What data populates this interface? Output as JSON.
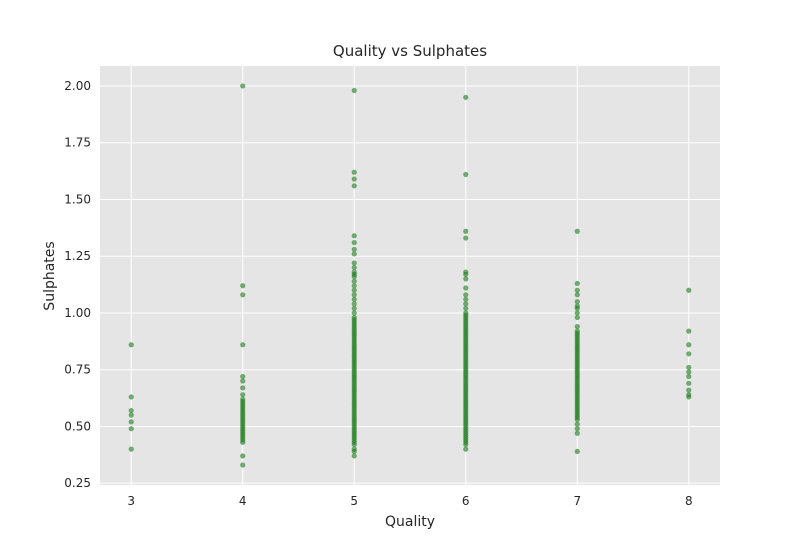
{
  "chart_data": {
    "type": "scatter",
    "title": "Quality vs Sulphates",
    "xlabel": "Quality",
    "ylabel": "Sulphates",
    "xlim": [
      2.72,
      8.28
    ],
    "ylim": [
      0.242,
      2.088
    ],
    "xticks": [
      3,
      4,
      5,
      6,
      7,
      8
    ],
    "xtick_labels": [
      "3",
      "4",
      "5",
      "6",
      "7",
      "8"
    ],
    "yticks": [
      0.25,
      0.5,
      0.75,
      1.0,
      1.25,
      1.5,
      1.75,
      2.0
    ],
    "ytick_labels": [
      "0.25",
      "0.50",
      "0.75",
      "1.00",
      "1.25",
      "1.50",
      "1.75",
      "2.00"
    ],
    "grid": true,
    "colors": {
      "background": "#e5e5e5",
      "grid": "#ffffff",
      "point": "#1a7a1a"
    },
    "series": [
      {
        "points": [
          [
            3,
            0.86
          ],
          [
            3,
            0.63
          ],
          [
            3,
            0.57
          ],
          [
            3,
            0.55
          ],
          [
            3,
            0.52
          ],
          [
            3,
            0.49
          ],
          [
            3,
            0.4
          ],
          [
            4,
            2.0
          ],
          [
            4,
            1.12
          ],
          [
            4,
            1.08
          ],
          [
            4,
            0.86
          ],
          [
            4,
            0.72
          ],
          [
            4,
            0.7
          ],
          [
            4,
            0.67
          ],
          [
            4,
            0.64
          ],
          [
            4,
            0.62
          ],
          [
            4,
            0.61
          ],
          [
            4,
            0.6
          ],
          [
            4,
            0.59
          ],
          [
            4,
            0.58
          ],
          [
            4,
            0.57
          ],
          [
            4,
            0.56
          ],
          [
            4,
            0.55
          ],
          [
            4,
            0.54
          ],
          [
            4,
            0.53
          ],
          [
            4,
            0.52
          ],
          [
            4,
            0.51
          ],
          [
            4,
            0.5
          ],
          [
            4,
            0.49
          ],
          [
            4,
            0.48
          ],
          [
            4,
            0.47
          ],
          [
            4,
            0.46
          ],
          [
            4,
            0.45
          ],
          [
            4,
            0.44
          ],
          [
            4,
            0.43
          ],
          [
            4,
            0.37
          ],
          [
            4,
            0.33
          ],
          [
            5,
            1.98
          ],
          [
            5,
            1.62
          ],
          [
            5,
            1.59
          ],
          [
            5,
            1.56
          ],
          [
            5,
            1.34
          ],
          [
            5,
            1.31
          ],
          [
            5,
            1.28
          ],
          [
            5,
            1.26
          ],
          [
            5,
            1.22
          ],
          [
            5,
            1.2
          ],
          [
            5,
            1.18
          ],
          [
            5,
            1.17
          ],
          [
            5,
            1.16
          ],
          [
            5,
            1.14
          ],
          [
            5,
            1.12
          ],
          [
            5,
            1.1
          ],
          [
            5,
            1.08
          ],
          [
            5,
            1.06
          ],
          [
            5,
            1.04
          ],
          [
            5,
            1.02
          ],
          [
            5,
            1.0
          ],
          [
            5,
            0.98
          ],
          [
            5,
            0.97
          ],
          [
            5,
            0.96
          ],
          [
            5,
            0.95
          ],
          [
            5,
            0.94
          ],
          [
            5,
            0.93
          ],
          [
            5,
            0.92
          ],
          [
            5,
            0.91
          ],
          [
            5,
            0.9
          ],
          [
            5,
            0.89
          ],
          [
            5,
            0.88
          ],
          [
            5,
            0.87
          ],
          [
            5,
            0.86
          ],
          [
            5,
            0.85
          ],
          [
            5,
            0.84
          ],
          [
            5,
            0.83
          ],
          [
            5,
            0.82
          ],
          [
            5,
            0.81
          ],
          [
            5,
            0.8
          ],
          [
            5,
            0.79
          ],
          [
            5,
            0.78
          ],
          [
            5,
            0.77
          ],
          [
            5,
            0.76
          ],
          [
            5,
            0.75
          ],
          [
            5,
            0.74
          ],
          [
            5,
            0.73
          ],
          [
            5,
            0.72
          ],
          [
            5,
            0.71
          ],
          [
            5,
            0.7
          ],
          [
            5,
            0.69
          ],
          [
            5,
            0.68
          ],
          [
            5,
            0.67
          ],
          [
            5,
            0.66
          ],
          [
            5,
            0.65
          ],
          [
            5,
            0.64
          ],
          [
            5,
            0.63
          ],
          [
            5,
            0.62
          ],
          [
            5,
            0.61
          ],
          [
            5,
            0.6
          ],
          [
            5,
            0.59
          ],
          [
            5,
            0.58
          ],
          [
            5,
            0.57
          ],
          [
            5,
            0.56
          ],
          [
            5,
            0.55
          ],
          [
            5,
            0.54
          ],
          [
            5,
            0.53
          ],
          [
            5,
            0.52
          ],
          [
            5,
            0.51
          ],
          [
            5,
            0.5
          ],
          [
            5,
            0.49
          ],
          [
            5,
            0.48
          ],
          [
            5,
            0.47
          ],
          [
            5,
            0.46
          ],
          [
            5,
            0.45
          ],
          [
            5,
            0.44
          ],
          [
            5,
            0.43
          ],
          [
            5,
            0.42
          ],
          [
            5,
            0.4
          ],
          [
            5,
            0.39
          ],
          [
            5,
            0.37
          ],
          [
            6,
            1.95
          ],
          [
            6,
            1.61
          ],
          [
            6,
            1.36
          ],
          [
            6,
            1.33
          ],
          [
            6,
            1.18
          ],
          [
            6,
            1.17
          ],
          [
            6,
            1.15
          ],
          [
            6,
            1.11
          ],
          [
            6,
            1.08
          ],
          [
            6,
            1.06
          ],
          [
            6,
            1.04
          ],
          [
            6,
            1.02
          ],
          [
            6,
            1.0
          ],
          [
            6,
            0.99
          ],
          [
            6,
            0.98
          ],
          [
            6,
            0.97
          ],
          [
            6,
            0.96
          ],
          [
            6,
            0.95
          ],
          [
            6,
            0.94
          ],
          [
            6,
            0.93
          ],
          [
            6,
            0.92
          ],
          [
            6,
            0.91
          ],
          [
            6,
            0.9
          ],
          [
            6,
            0.89
          ],
          [
            6,
            0.88
          ],
          [
            6,
            0.87
          ],
          [
            6,
            0.86
          ],
          [
            6,
            0.85
          ],
          [
            6,
            0.84
          ],
          [
            6,
            0.83
          ],
          [
            6,
            0.82
          ],
          [
            6,
            0.81
          ],
          [
            6,
            0.8
          ],
          [
            6,
            0.79
          ],
          [
            6,
            0.78
          ],
          [
            6,
            0.77
          ],
          [
            6,
            0.76
          ],
          [
            6,
            0.75
          ],
          [
            6,
            0.74
          ],
          [
            6,
            0.73
          ],
          [
            6,
            0.72
          ],
          [
            6,
            0.71
          ],
          [
            6,
            0.7
          ],
          [
            6,
            0.69
          ],
          [
            6,
            0.68
          ],
          [
            6,
            0.67
          ],
          [
            6,
            0.66
          ],
          [
            6,
            0.65
          ],
          [
            6,
            0.64
          ],
          [
            6,
            0.63
          ],
          [
            6,
            0.62
          ],
          [
            6,
            0.61
          ],
          [
            6,
            0.6
          ],
          [
            6,
            0.59
          ],
          [
            6,
            0.58
          ],
          [
            6,
            0.57
          ],
          [
            6,
            0.56
          ],
          [
            6,
            0.55
          ],
          [
            6,
            0.54
          ],
          [
            6,
            0.53
          ],
          [
            6,
            0.52
          ],
          [
            6,
            0.51
          ],
          [
            6,
            0.5
          ],
          [
            6,
            0.49
          ],
          [
            6,
            0.48
          ],
          [
            6,
            0.47
          ],
          [
            6,
            0.46
          ],
          [
            6,
            0.45
          ],
          [
            6,
            0.44
          ],
          [
            6,
            0.43
          ],
          [
            6,
            0.42
          ],
          [
            6,
            0.4
          ],
          [
            7,
            1.36
          ],
          [
            7,
            1.13
          ],
          [
            7,
            1.1
          ],
          [
            7,
            1.08
          ],
          [
            7,
            1.05
          ],
          [
            7,
            1.03
          ],
          [
            7,
            1.02
          ],
          [
            7,
            1.0
          ],
          [
            7,
            0.98
          ],
          [
            7,
            0.94
          ],
          [
            7,
            0.92
          ],
          [
            7,
            0.91
          ],
          [
            7,
            0.9
          ],
          [
            7,
            0.89
          ],
          [
            7,
            0.88
          ],
          [
            7,
            0.87
          ],
          [
            7,
            0.86
          ],
          [
            7,
            0.85
          ],
          [
            7,
            0.84
          ],
          [
            7,
            0.83
          ],
          [
            7,
            0.82
          ],
          [
            7,
            0.81
          ],
          [
            7,
            0.8
          ],
          [
            7,
            0.79
          ],
          [
            7,
            0.78
          ],
          [
            7,
            0.77
          ],
          [
            7,
            0.76
          ],
          [
            7,
            0.75
          ],
          [
            7,
            0.74
          ],
          [
            7,
            0.73
          ],
          [
            7,
            0.72
          ],
          [
            7,
            0.71
          ],
          [
            7,
            0.7
          ],
          [
            7,
            0.69
          ],
          [
            7,
            0.68
          ],
          [
            7,
            0.67
          ],
          [
            7,
            0.66
          ],
          [
            7,
            0.65
          ],
          [
            7,
            0.64
          ],
          [
            7,
            0.63
          ],
          [
            7,
            0.62
          ],
          [
            7,
            0.61
          ],
          [
            7,
            0.6
          ],
          [
            7,
            0.59
          ],
          [
            7,
            0.58
          ],
          [
            7,
            0.57
          ],
          [
            7,
            0.56
          ],
          [
            7,
            0.55
          ],
          [
            7,
            0.54
          ],
          [
            7,
            0.53
          ],
          [
            7,
            0.51
          ],
          [
            7,
            0.49
          ],
          [
            7,
            0.47
          ],
          [
            7,
            0.39
          ],
          [
            8,
            1.1
          ],
          [
            8,
            0.92
          ],
          [
            8,
            0.86
          ],
          [
            8,
            0.82
          ],
          [
            8,
            0.76
          ],
          [
            8,
            0.74
          ],
          [
            8,
            0.72
          ],
          [
            8,
            0.69
          ],
          [
            8,
            0.66
          ],
          [
            8,
            0.64
          ],
          [
            8,
            0.63
          ]
        ]
      }
    ]
  }
}
